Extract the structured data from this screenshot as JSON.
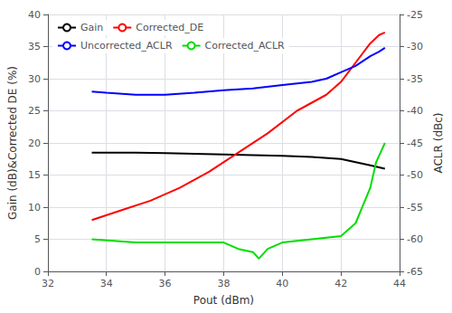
{
  "chart_data": {
    "type": "line",
    "x_label": "Pout (dBm)",
    "y_label": "Gain (dB)&Corrected DE (%)",
    "y2_label": "ACLR (dBc)",
    "xlim": [
      32,
      44
    ],
    "xticks": [
      32,
      34,
      36,
      38,
      40,
      42,
      44
    ],
    "ylim": [
      0,
      40
    ],
    "yticks": [
      0,
      5,
      10,
      15,
      20,
      25,
      30,
      35,
      40
    ],
    "y2lim": [
      -65,
      -25
    ],
    "y2ticks": [
      -65,
      -60,
      -55,
      -50,
      -45,
      -40,
      -35,
      -30,
      -25
    ],
    "grid": true,
    "legend": "upper left",
    "series": [
      {
        "name": "Gain",
        "color": "#000000",
        "x": [
          33.5,
          35,
          36,
          37,
          38,
          39,
          40,
          41,
          42,
          42.5,
          43,
          43.3,
          43.5
        ],
        "values": [
          18.5,
          18.5,
          18.4,
          18.3,
          18.2,
          18.1,
          18.0,
          17.8,
          17.5,
          17.0,
          16.5,
          16.2,
          16.0
        ]
      },
      {
        "name": "Corrected_DE",
        "color": "#ff0000",
        "x": [
          33.5,
          34.5,
          35.5,
          36.5,
          37.5,
          38.5,
          39.5,
          40.5,
          41.5,
          42.0,
          42.5,
          43.0,
          43.3,
          43.5
        ],
        "values": [
          8.0,
          9.5,
          11.0,
          13.0,
          15.5,
          18.5,
          21.5,
          25.0,
          27.5,
          29.5,
          32.5,
          35.5,
          36.8,
          37.2
        ]
      },
      {
        "name": "Uncorrected_ACLR",
        "color": "#0000ff",
        "axis": "y2",
        "x": [
          33.5,
          34,
          35,
          36,
          37,
          38,
          39,
          40,
          41,
          41.5,
          42,
          42.5,
          43,
          43.3,
          43.5
        ],
        "values": [
          -37.0,
          -37.2,
          -37.5,
          -37.5,
          -37.2,
          -36.8,
          -36.5,
          -36.0,
          -35.5,
          -35.0,
          -34.0,
          -33.0,
          -31.5,
          -30.8,
          -30.2
        ]
      },
      {
        "name": "Corrected_ACLR",
        "color": "#00dd00",
        "axis": "y2",
        "x": [
          33.5,
          35,
          36,
          37,
          38,
          38.5,
          39.0,
          39.2,
          39.5,
          40.0,
          41.0,
          42.0,
          42.5,
          43.0,
          43.2,
          43.5
        ],
        "values": [
          -60.0,
          -60.5,
          -60.5,
          -60.5,
          -60.5,
          -61.5,
          -62.0,
          -63.0,
          -61.5,
          -60.5,
          -60.0,
          -59.5,
          -57.5,
          -52.0,
          -48.0,
          -45.0
        ]
      }
    ]
  }
}
